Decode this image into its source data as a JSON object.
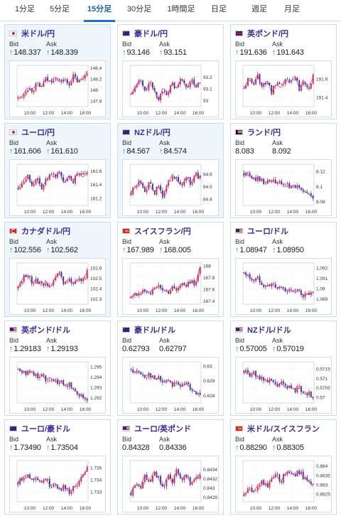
{
  "tabs": [
    {
      "label": "1分足",
      "active": false
    },
    {
      "label": "5分足",
      "active": false
    },
    {
      "label": "15分足",
      "active": true
    },
    {
      "label": "30分足",
      "active": false
    },
    {
      "label": "1時間足",
      "active": false
    },
    {
      "label": "日足",
      "active": false
    },
    {
      "label": "週足",
      "active": false
    },
    {
      "label": "月足",
      "active": false
    }
  ],
  "labels": {
    "bid": "Bid",
    "ask": "Ask"
  },
  "colors": {
    "up": "#e0202a",
    "down": "#1f3b9a",
    "ma": "#cc33cc",
    "pair": "#3d2a9c",
    "arrow": "#19a06b"
  },
  "cards": [
    {
      "pair": "米ドル/円",
      "flag": "jp",
      "bid": "148.337",
      "ask": "148.339",
      "bid_up": true,
      "ask_up": true,
      "highlight": true,
      "chart_data": {
        "type": "candlestick",
        "yticks": [
          "148.4",
          "148.2",
          "148",
          "147.8"
        ],
        "ylim": [
          147.7,
          148.45
        ],
        "xticks": [
          "10:00",
          "12:00",
          "14:00",
          "16:00"
        ],
        "trend": [
          147.85,
          147.9,
          148.05,
          148.0,
          148.1,
          148.05,
          148.2,
          148.15,
          148.25,
          148.15,
          148.2,
          148.1,
          148.25,
          148.15,
          148.2,
          148.35
        ]
      }
    },
    {
      "pair": "豪ドル/円",
      "flag": "au",
      "bid": "93.146",
      "ask": "93.151",
      "bid_up": true,
      "ask_up": true,
      "highlight": false,
      "chart_data": {
        "type": "candlestick",
        "yticks": [
          "93.2",
          "93.1",
          "93"
        ],
        "ylim": [
          92.95,
          93.3
        ],
        "xticks": [
          "10:00",
          "12:00",
          "14:00",
          "16:00"
        ],
        "trend": [
          93.05,
          93.12,
          93.18,
          93.08,
          93.15,
          93.1,
          93.0,
          93.12,
          93.05,
          93.15,
          93.1,
          93.2,
          93.1,
          93.18,
          93.12,
          93.15
        ]
      }
    },
    {
      "pair": "英ポンド/円",
      "flag": "gb",
      "bid": "191.636",
      "ask": "191.643",
      "bid_up": true,
      "ask_up": true,
      "highlight": false,
      "chart_data": {
        "type": "candlestick",
        "yticks": [
          "191.6",
          "191.4"
        ],
        "ylim": [
          191.3,
          191.75
        ],
        "xticks": [
          "10:00",
          "12:00",
          "14:00",
          "16:00"
        ],
        "trend": [
          191.5,
          191.6,
          191.55,
          191.65,
          191.5,
          191.6,
          191.45,
          191.55,
          191.5,
          191.6,
          191.55,
          191.65,
          191.5,
          191.6,
          191.5,
          191.62
        ]
      }
    },
    {
      "pair": "ユーロ/円",
      "flag": "jp",
      "bid": "161.606",
      "ask": "161.610",
      "bid_up": true,
      "ask_up": true,
      "highlight": true,
      "chart_data": {
        "type": "candlestick",
        "yticks": [
          "161.6",
          "161.4",
          "161.2"
        ],
        "ylim": [
          161.1,
          161.7
        ],
        "xticks": [
          "10:00",
          "12:00",
          "14:00",
          "16:00"
        ],
        "trend": [
          161.35,
          161.45,
          161.55,
          161.4,
          161.5,
          161.35,
          161.45,
          161.55,
          161.5,
          161.6,
          161.4,
          161.55,
          161.45,
          161.6,
          161.5,
          161.58
        ]
      }
    },
    {
      "pair": "NZドル/円",
      "flag": "au",
      "bid": "84.567",
      "ask": "84.574",
      "bid_up": true,
      "ask_up": true,
      "highlight": true,
      "chart_data": {
        "type": "candlestick",
        "yticks": [
          "84.6",
          "84.5",
          "84.4"
        ],
        "ylim": [
          84.35,
          84.68
        ],
        "xticks": [
          "10:00",
          "12:00",
          "14:00",
          "16:00"
        ],
        "trend": [
          84.45,
          84.5,
          84.55,
          84.48,
          84.52,
          84.45,
          84.5,
          84.42,
          84.52,
          84.6,
          84.55,
          84.5,
          84.58,
          84.52,
          84.6,
          84.57
        ]
      }
    },
    {
      "pair": "ランド/円",
      "flag": "za",
      "bid": "8.083",
      "ask": "8.092",
      "bid_up": false,
      "ask_up": false,
      "highlight": false,
      "chart_data": {
        "type": "candlestick",
        "yticks": [
          "8.12",
          "8.1",
          "8.08"
        ],
        "ylim": [
          8.075,
          8.13
        ],
        "xticks": [
          "10:00",
          "12:00",
          "14:00",
          "16:00"
        ],
        "trend": [
          8.118,
          8.115,
          8.11,
          8.112,
          8.108,
          8.105,
          8.108,
          8.104,
          8.106,
          8.1,
          8.102,
          8.098,
          8.1,
          8.095,
          8.09,
          8.085
        ]
      }
    },
    {
      "pair": "カナダドル/円",
      "flag": "ca",
      "bid": "102.556",
      "ask": "102.562",
      "bid_up": true,
      "ask_up": true,
      "highlight": true,
      "chart_data": {
        "type": "candlestick",
        "yticks": [
          "102.6",
          "102.5",
          "102.4",
          "102.3"
        ],
        "ylim": [
          102.25,
          102.65
        ],
        "xticks": [
          "10:00",
          "12:00",
          "14:00",
          "16:00"
        ],
        "trend": [
          102.4,
          102.5,
          102.55,
          102.45,
          102.5,
          102.42,
          102.48,
          102.4,
          102.5,
          102.55,
          102.45,
          102.5,
          102.45,
          102.5,
          102.48,
          102.56
        ]
      }
    },
    {
      "pair": "スイスフラン/円",
      "flag": "ch",
      "bid": "167.989",
      "ask": "168.005",
      "bid_up": true,
      "ask_up": true,
      "highlight": false,
      "chart_data": {
        "type": "candlestick",
        "yticks": [
          "168",
          "167.8",
          "167.6",
          "167.4"
        ],
        "ylim": [
          167.35,
          168.05
        ],
        "xticks": [
          "10:00",
          "12:00",
          "14:00",
          "16:00"
        ],
        "trend": [
          167.45,
          167.55,
          167.5,
          167.6,
          167.55,
          167.6,
          167.65,
          167.6,
          167.55,
          167.65,
          167.6,
          167.7,
          167.65,
          167.75,
          167.7,
          167.99
        ]
      }
    },
    {
      "pair": "ユーロ/ドル",
      "flag": "us",
      "bid": "1.08947",
      "ask": "1.08950",
      "bid_up": true,
      "ask_up": true,
      "highlight": false,
      "chart_data": {
        "type": "candlestick",
        "yticks": [
          "1.092",
          "1.091",
          "1.09",
          "1.089"
        ],
        "ylim": [
          1.0885,
          1.0925
        ],
        "xticks": [
          "10:00",
          "12:00",
          "14:00",
          "16:00"
        ],
        "trend": [
          1.0915,
          1.0912,
          1.0908,
          1.091,
          1.0905,
          1.0902,
          1.0905,
          1.09,
          1.0902,
          1.0898,
          1.09,
          1.0896,
          1.0898,
          1.0893,
          1.0895,
          1.0894
        ]
      }
    },
    {
      "pair": "英ポンド/ドル",
      "flag": "us",
      "bid": "1.29183",
      "ask": "1.29193",
      "bid_up": true,
      "ask_up": true,
      "highlight": false,
      "chart_data": {
        "type": "candlestick",
        "yticks": [
          "1.295",
          "1.294",
          "1.293",
          "1.292"
        ],
        "ylim": [
          1.2915,
          1.2955
        ],
        "xticks": [
          "10:00",
          "12:00",
          "14:00",
          "16:00"
        ],
        "trend": [
          1.2948,
          1.2946,
          1.2944,
          1.2945,
          1.2941,
          1.2943,
          1.2938,
          1.294,
          1.2935,
          1.2937,
          1.2932,
          1.2934,
          1.2928,
          1.2925,
          1.2922,
          1.2918
        ]
      }
    },
    {
      "pair": "豪ドル/ドル",
      "flag": "au",
      "bid": "0.62793",
      "ask": "0.62797",
      "bid_up": false,
      "ask_up": false,
      "highlight": false,
      "chart_data": {
        "type": "candlestick",
        "yticks": [
          "0.63",
          "0.629",
          "0.628"
        ],
        "ylim": [
          0.6275,
          0.6303
        ],
        "xticks": [
          "10:00",
          "12:00",
          "14:00",
          "16:00"
        ],
        "trend": [
          0.6298,
          0.6296,
          0.6295,
          0.6293,
          0.6295,
          0.6291,
          0.6292,
          0.6289,
          0.6291,
          0.6288,
          0.6289,
          0.6286,
          0.6288,
          0.6285,
          0.6283,
          0.6279
        ]
      }
    },
    {
      "pair": "NZドル/ドル",
      "flag": "us",
      "bid": "0.57005",
      "ask": "0.57019",
      "bid_up": true,
      "ask_up": true,
      "highlight": false,
      "chart_data": {
        "type": "candlestick",
        "yticks": [
          "0.5715",
          "0.571",
          "0.5705",
          "0.57"
        ],
        "ylim": [
          0.5697,
          0.5719
        ],
        "xticks": [
          "10:00",
          "12:00",
          "14:00",
          "16:00"
        ],
        "trend": [
          0.5714,
          0.5712,
          0.5713,
          0.571,
          0.5711,
          0.5708,
          0.5709,
          0.5706,
          0.5708,
          0.5705,
          0.5706,
          0.5704,
          0.5705,
          0.5703,
          0.5702,
          0.57
        ]
      }
    },
    {
      "pair": "ユーロ/豪ドル",
      "flag": "au",
      "bid": "1.73490",
      "ask": "1.73504",
      "bid_up": true,
      "ask_up": true,
      "highlight": false,
      "chart_data": {
        "type": "candlestick",
        "yticks": [
          "1.735",
          "1.734",
          "1.733"
        ],
        "ylim": [
          1.7322,
          1.7356
        ],
        "xticks": [
          "10:00",
          "12:00",
          "14:00",
          "16:00"
        ],
        "trend": [
          1.7338,
          1.7342,
          1.7345,
          1.734,
          1.7343,
          1.7338,
          1.7341,
          1.7335,
          1.7338,
          1.7332,
          1.7335,
          1.733,
          1.7333,
          1.7338,
          1.7342,
          1.7349
        ]
      }
    },
    {
      "pair": "ユーロ/英ポンド",
      "flag": "us",
      "bid": "0.84328",
      "ask": "0.84336",
      "bid_up": false,
      "ask_up": false,
      "highlight": false,
      "chart_data": {
        "type": "candlestick",
        "yticks": [
          "0.8434",
          "0.8432",
          "0.843",
          "0.8428"
        ],
        "ylim": [
          0.8427,
          0.8436
        ],
        "xticks": [
          "10:00",
          "12:00",
          "14:00",
          "16:00"
        ],
        "trend": [
          0.8429,
          0.8431,
          0.843,
          0.8433,
          0.8431,
          0.8434,
          0.8432,
          0.843,
          0.8433,
          0.8431,
          0.8434,
          0.8432,
          0.8433,
          0.8431,
          0.8432,
          0.8433
        ]
      }
    },
    {
      "pair": "米ドル/スイスフラン",
      "flag": "ch",
      "bid": "0.88290",
      "ask": "0.88305",
      "bid_up": true,
      "ask_up": true,
      "highlight": false,
      "chart_data": {
        "type": "candlestick",
        "yticks": [
          "0.884",
          "0.8835",
          "0.883",
          "0.8825"
        ],
        "ylim": [
          0.8821,
          0.8843
        ],
        "xticks": [
          "10:00",
          "12:00",
          "14:00",
          "16:00"
        ],
        "trend": [
          0.8824,
          0.8828,
          0.8826,
          0.883,
          0.8832,
          0.8829,
          0.8833,
          0.8835,
          0.8832,
          0.8836,
          0.8838,
          0.8835,
          0.8837,
          0.8834,
          0.8832,
          0.8829
        ]
      }
    }
  ]
}
